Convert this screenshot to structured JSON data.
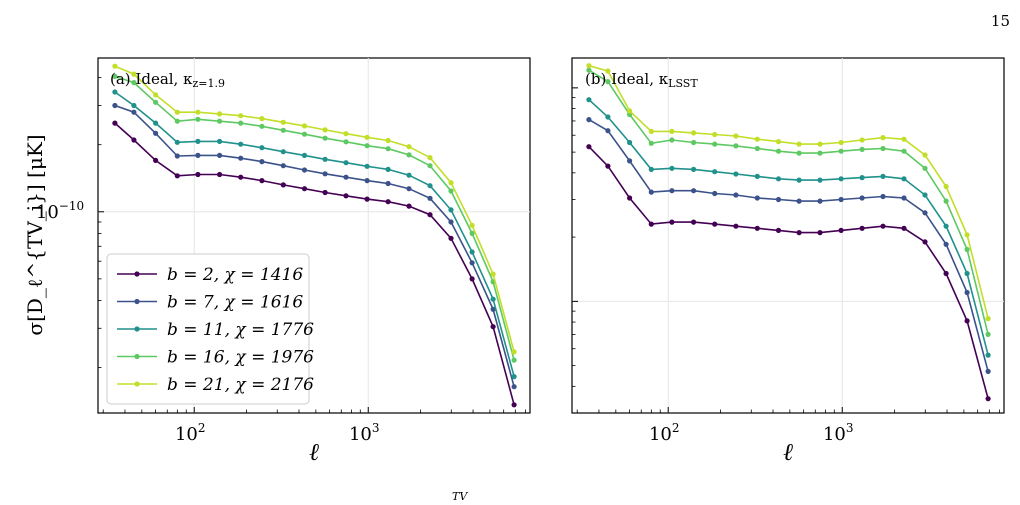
{
  "page": {
    "page_number": "15",
    "caption_fragment": "TV"
  },
  "chart_data": [
    {
      "type": "line",
      "panel_label": "(a) Ideal, κ",
      "panel_label_sub": "z=1.9",
      "xlabel": "ℓ",
      "ylabel": "σ[D_ℓ^{TV_i}] [μK]",
      "x_scale": "log",
      "y_scale": "log",
      "xlim": [
        28,
        8500
      ],
      "ylim": [
        1.25e-11,
        4.9e-10
      ],
      "x_ticks": [
        100,
        1000
      ],
      "x_tick_labels": [
        "10",
        "10"
      ],
      "x_tick_exponents": [
        "2",
        "3"
      ],
      "y_ticks": [
        1e-10
      ],
      "y_tick_labels": [
        "10"
      ],
      "y_tick_exponents": [
        "−10"
      ],
      "grid": true,
      "legend_position": "lower-left",
      "x": [
        35,
        45,
        60,
        80,
        105,
        140,
        185,
        245,
        325,
        430,
        565,
        745,
        985,
        1300,
        1715,
        2265,
        2990,
        3950,
        5215,
        6885
      ],
      "series": [
        {
          "name": "b = 2, χ = 1416",
          "color": "#440154",
          "values": [
            2.5e-10,
            2.1e-10,
            1.7e-10,
            1.45e-10,
            1.47e-10,
            1.47e-10,
            1.43e-10,
            1.38e-10,
            1.32e-10,
            1.27e-10,
            1.22e-10,
            1.18e-10,
            1.14e-10,
            1.11e-10,
            1.06e-10,
            9.7e-11,
            7.6e-11,
            5e-11,
            3.05e-11,
            1.36e-11
          ]
        },
        {
          "name": "b = 7, χ = 1616",
          "color": "#3b528b",
          "values": [
            3e-10,
            2.8e-10,
            2.25e-10,
            1.78e-10,
            1.79e-10,
            1.79e-10,
            1.74e-10,
            1.68e-10,
            1.61e-10,
            1.54e-10,
            1.48e-10,
            1.43e-10,
            1.38e-10,
            1.34e-10,
            1.27e-10,
            1.15e-10,
            9e-11,
            5.9e-11,
            3.65e-11,
            1.64e-11
          ]
        },
        {
          "name": "b = 11, χ = 1776",
          "color": "#21918c",
          "values": [
            3.45e-10,
            3e-10,
            2.5e-10,
            2.05e-10,
            2.07e-10,
            2.07e-10,
            2.01e-10,
            1.94e-10,
            1.86e-10,
            1.79e-10,
            1.72e-10,
            1.66e-10,
            1.6e-10,
            1.55e-10,
            1.46e-10,
            1.31e-10,
            1.02e-10,
            6.6e-11,
            4.05e-11,
            1.82e-11
          ]
        },
        {
          "name": "b = 16, χ = 1976",
          "color": "#5ec962",
          "values": [
            4.05e-10,
            3.8e-10,
            3.1e-10,
            2.55e-10,
            2.6e-10,
            2.55e-10,
            2.5e-10,
            2.42e-10,
            2.32e-10,
            2.23e-10,
            2.14e-10,
            2.06e-10,
            1.98e-10,
            1.92e-10,
            1.8e-10,
            1.61e-10,
            1.24e-10,
            8e-11,
            4.85e-11,
            2.16e-11
          ]
        },
        {
          "name": "b = 21, χ = 2176",
          "color": "#c3de28",
          "values": [
            4.5e-10,
            4.15e-10,
            3.35e-10,
            2.8e-10,
            2.8e-10,
            2.75e-10,
            2.7e-10,
            2.62e-10,
            2.52e-10,
            2.43e-10,
            2.33e-10,
            2.24e-10,
            2.16e-10,
            2.09e-10,
            1.96e-10,
            1.75e-10,
            1.35e-10,
            8.7e-11,
            5.25e-11,
            2.35e-11
          ]
        }
      ]
    },
    {
      "type": "line",
      "panel_label": "(b) Ideal, κ",
      "panel_label_sub": "LSST",
      "xlabel": "ℓ",
      "ylabel": "",
      "x_scale": "log",
      "y_scale": "log",
      "xlim": [
        28,
        8500
      ],
      "ylim": [
        3e-12,
        1.38e-10
      ],
      "x_ticks": [
        100,
        1000
      ],
      "x_tick_labels": [
        "10",
        "10"
      ],
      "x_tick_exponents": [
        "2",
        "3"
      ],
      "y_ticks": [
        1e-11
      ],
      "y_tick_labels": [
        ""
      ],
      "grid": true,
      "x": [
        35,
        45,
        60,
        80,
        105,
        140,
        185,
        245,
        325,
        430,
        565,
        745,
        985,
        1300,
        1715,
        2265,
        2990,
        3950,
        5215,
        6885
      ],
      "series": [
        {
          "name": "b = 2, χ = 1416",
          "color": "#440154",
          "values": [
            5.3e-11,
            4.3e-11,
            3.05e-11,
            2.3e-11,
            2.35e-11,
            2.35e-11,
            2.3e-11,
            2.25e-11,
            2.2e-11,
            2.15e-11,
            2.1e-11,
            2.1e-11,
            2.15e-11,
            2.2e-11,
            2.25e-11,
            2.2e-11,
            1.9e-11,
            1.35e-11,
            8.1e-12,
            3.5e-12
          ]
        },
        {
          "name": "b = 7, χ = 1616",
          "color": "#3b528b",
          "values": [
            7.1e-11,
            6.3e-11,
            4.55e-11,
            3.25e-11,
            3.3e-11,
            3.3e-11,
            3.2e-11,
            3.15e-11,
            3.05e-11,
            3e-11,
            2.95e-11,
            2.95e-11,
            3e-11,
            3.05e-11,
            3.1e-11,
            3.05e-11,
            2.6e-11,
            1.85e-11,
            1.1e-11,
            4.7e-12
          ]
        },
        {
          "name": "b = 11, χ = 1776",
          "color": "#21918c",
          "values": [
            8.8e-11,
            7.3e-11,
            5.55e-11,
            4.15e-11,
            4.2e-11,
            4.15e-11,
            4.05e-11,
            3.95e-11,
            3.85e-11,
            3.75e-11,
            3.7e-11,
            3.7e-11,
            3.75e-11,
            3.8e-11,
            3.85e-11,
            3.75e-11,
            3.15e-11,
            2.25e-11,
            1.35e-11,
            5.6e-12
          ]
        },
        {
          "name": "b = 16, χ = 1976",
          "color": "#5ec962",
          "values": [
            1.21e-10,
            1.07e-10,
            7.5e-11,
            5.5e-11,
            5.7e-11,
            5.55e-11,
            5.45e-11,
            5.35e-11,
            5.2e-11,
            5.05e-11,
            4.95e-11,
            4.95e-11,
            5.05e-11,
            5.15e-11,
            5.2e-11,
            5.05e-11,
            4.2e-11,
            2.95e-11,
            1.75e-11,
            7e-12
          ]
        },
        {
          "name": "b = 21, χ = 2176",
          "color": "#c3de28",
          "values": [
            1.27e-10,
            1.2e-10,
            7.8e-11,
            6.25e-11,
            6.25e-11,
            6.15e-11,
            6.05e-11,
            5.95e-11,
            5.75e-11,
            5.6e-11,
            5.45e-11,
            5.45e-11,
            5.55e-11,
            5.7e-11,
            5.85e-11,
            5.75e-11,
            4.85e-11,
            3.45e-11,
            2.05e-11,
            8.3e-12
          ]
        }
      ]
    }
  ]
}
